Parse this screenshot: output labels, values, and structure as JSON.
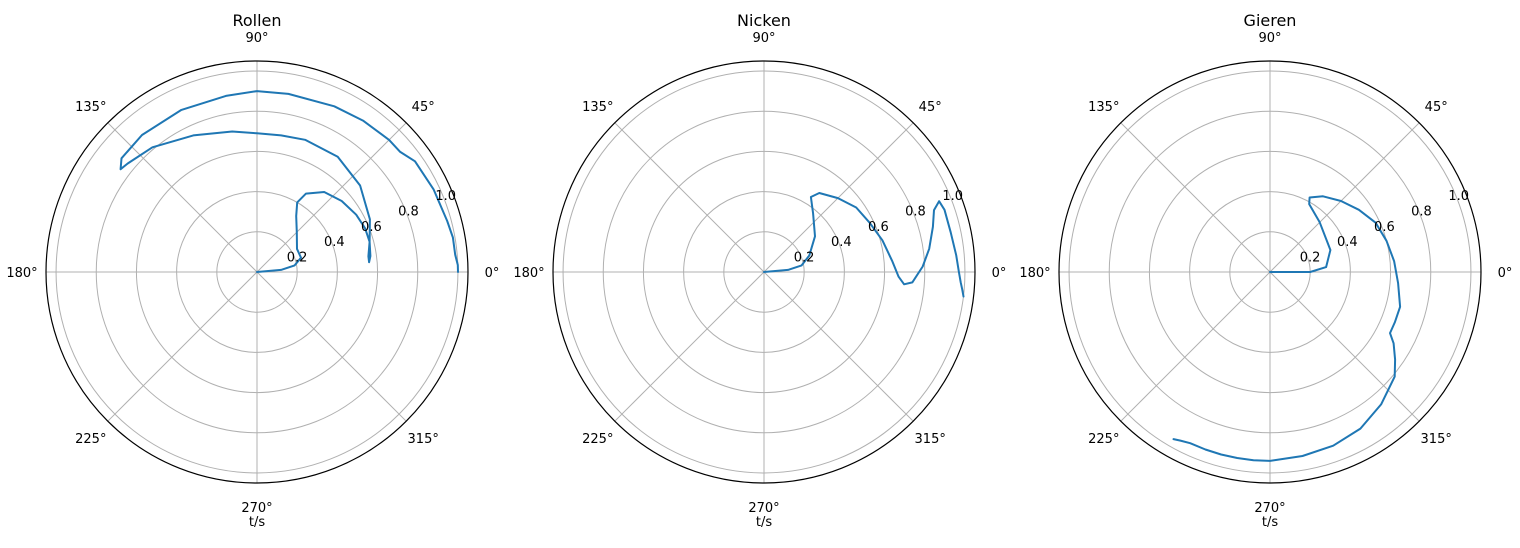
{
  "chart_data": [
    {
      "type": "line",
      "projection": "polar",
      "title": "Rollen",
      "xlabel": "t/s",
      "rlim": [
        0,
        1.05
      ],
      "r_ticks": [
        "0.2",
        "0.4",
        "0.6",
        "0.8",
        "1.0"
      ],
      "theta_ticks": [
        "0°",
        "45°",
        "90°",
        "135°",
        "180°",
        "225°",
        "270°",
        "315°"
      ],
      "grid": true,
      "color": "#1f77b4",
      "series": [
        {
          "theta_deg": [
            0,
            5,
            10,
            18,
            30,
            45,
            55,
            60,
            58,
            50,
            40,
            30,
            22,
            15,
            8,
            5,
            8,
            15,
            25,
            40,
            55,
            70,
            80,
            90,
            100,
            115,
            130,
            140,
            143,
            140,
            130,
            115,
            100,
            90,
            80,
            65,
            55,
            45,
            40,
            35,
            25,
            15,
            10,
            5,
            2,
            0
          ],
          "r": [
            0,
            0.12,
            0.19,
            0.23,
            0.23,
            0.28,
            0.34,
            0.4,
            0.46,
            0.52,
            0.55,
            0.57,
            0.58,
            0.58,
            0.57,
            0.56,
            0.56,
            0.58,
            0.62,
            0.67,
            0.7,
            0.7,
            0.69,
            0.69,
            0.71,
            0.75,
            0.81,
            0.84,
            0.85,
            0.88,
            0.89,
            0.89,
            0.89,
            0.9,
            0.9,
            0.91,
            0.92,
            0.93,
            0.93,
            0.96,
            0.97,
            0.98,
            0.99,
            0.99,
            1.0,
            1.0
          ]
        }
      ]
    },
    {
      "type": "line",
      "projection": "polar",
      "title": "Nicken",
      "xlabel": "t/s",
      "rlim": [
        0,
        1.05
      ],
      "r_ticks": [
        "0.2",
        "0.4",
        "0.6",
        "0.8",
        "1.0"
      ],
      "theta_ticks": [
        "0°",
        "45°",
        "90°",
        "135°",
        "180°",
        "225°",
        "270°",
        "315°"
      ],
      "grid": true,
      "color": "#1f77b4",
      "series": [
        {
          "theta_deg": [
            0,
            5,
            10,
            20,
            35,
            50,
            58,
            55,
            45,
            35,
            25,
            15,
            5,
            -2,
            -5,
            -4,
            2,
            8,
            15,
            20,
            22,
            19,
            12,
            5,
            0,
            -3,
            -5,
            -7
          ],
          "r": [
            0,
            0.12,
            0.19,
            0.24,
            0.31,
            0.38,
            0.44,
            0.48,
            0.52,
            0.56,
            0.58,
            0.61,
            0.64,
            0.67,
            0.7,
            0.74,
            0.79,
            0.83,
            0.87,
            0.9,
            0.94,
            0.95,
            0.95,
            0.96,
            0.97,
            0.98,
            0.99,
            1.0
          ]
        }
      ]
    },
    {
      "type": "line",
      "projection": "polar",
      "title": "Gieren",
      "xlabel": "t/s",
      "rlim": [
        0,
        1.05
      ],
      "r_ticks": [
        "0.2",
        "0.4",
        "0.6",
        "0.8",
        "1.0"
      ],
      "theta_ticks": [
        "0°",
        "45°",
        "90°",
        "135°",
        "180°",
        "225°",
        "270°",
        "315°"
      ],
      "grid": true,
      "color": "#1f77b4",
      "series": [
        {
          "theta_deg": [
            0,
            0,
            5,
            20,
            45,
            60,
            62,
            55,
            45,
            35,
            25,
            15,
            5,
            -5,
            -15,
            -22,
            -27,
            -30,
            -35,
            -40,
            -50,
            -60,
            -70,
            -80,
            -90,
            -95,
            -100,
            -105,
            -110,
            -115,
            -118,
            -120
          ],
          "r": [
            0,
            0.2,
            0.28,
            0.32,
            0.35,
            0.39,
            0.42,
            0.46,
            0.5,
            0.54,
            0.58,
            0.6,
            0.62,
            0.64,
            0.67,
            0.67,
            0.67,
            0.71,
            0.76,
            0.81,
            0.86,
            0.9,
            0.92,
            0.93,
            0.94,
            0.94,
            0.94,
            0.94,
            0.94,
            0.94,
            0.95,
            0.96
          ]
        }
      ]
    }
  ]
}
